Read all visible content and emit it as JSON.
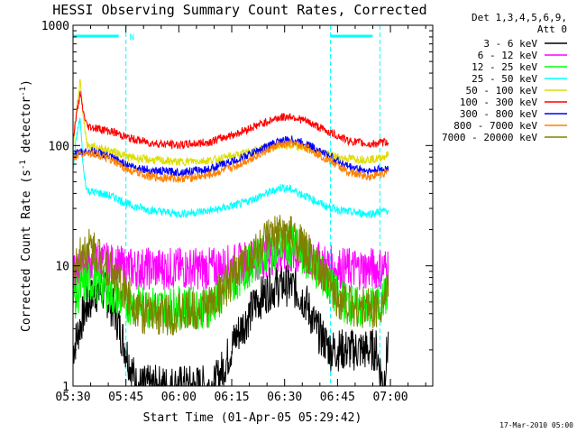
{
  "chart_data": {
    "type": "line",
    "title": "HESSI Observing Summary Count Rates, Corrected",
    "xlabel": "Start Time (01-Apr-05 05:29:42)",
    "ylabel": "Corrected Count Rate (s",
    "ylabel_sup1": "-1",
    "ylabel_mid": " detector",
    "ylabel_sup2": "-1",
    "ylabel_end": ")",
    "yscale": "log",
    "xlim_min": [
      0,
      102
    ],
    "ylim": [
      1,
      1000
    ],
    "x_ticks": [
      {
        "minute": 0,
        "label": "05:30"
      },
      {
        "minute": 15,
        "label": "05:45"
      },
      {
        "minute": 30,
        "label": "06:00"
      },
      {
        "minute": 45,
        "label": "06:15"
      },
      {
        "minute": 60,
        "label": "06:30"
      },
      {
        "minute": 75,
        "label": "06:45"
      },
      {
        "minute": 90,
        "label": "07:00"
      }
    ],
    "y_ticks": [
      {
        "value": 1,
        "label": "1"
      },
      {
        "value": 10,
        "label": "10"
      },
      {
        "value": 100,
        "label": "100"
      },
      {
        "value": 1000,
        "label": "1000"
      }
    ],
    "legend_header": [
      "Det 1,3,4,5,6,9,",
      "Att 0"
    ],
    "legend_placement": "right",
    "timestamp": "17-Mar-2010 05:00",
    "night_label": "N",
    "night_intervals": [
      [
        0,
        15
      ],
      [
        73,
        87
      ]
    ],
    "saa_lines": [
      15,
      73,
      87
    ],
    "series": [
      {
        "name": "3 - 6 keV",
        "color": "#000000",
        "points": [
          [
            0,
            2
          ],
          [
            3,
            4
          ],
          [
            6,
            6
          ],
          [
            9,
            6
          ],
          [
            12,
            4
          ],
          [
            15,
            2
          ],
          [
            18,
            1
          ],
          [
            25,
            1
          ],
          [
            35,
            1
          ],
          [
            40,
            1
          ],
          [
            43,
            1.5
          ],
          [
            46,
            2.5
          ],
          [
            49,
            3.5
          ],
          [
            52,
            5
          ],
          [
            56,
            6.5
          ],
          [
            60,
            7
          ],
          [
            63,
            6.5
          ],
          [
            66,
            5
          ],
          [
            69,
            3
          ],
          [
            73,
            2
          ],
          [
            80,
            2
          ],
          [
            86,
            2
          ],
          [
            88,
            1
          ],
          [
            89.5,
            2.5
          ]
        ]
      },
      {
        "name": "6 - 12 keV",
        "color": "#ff00ff",
        "points": [
          [
            0,
            8
          ],
          [
            3,
            10
          ],
          [
            6,
            11
          ],
          [
            9,
            10.5
          ],
          [
            12,
            10
          ],
          [
            15,
            9.5
          ],
          [
            20,
            9.5
          ],
          [
            30,
            9.5
          ],
          [
            40,
            9.5
          ],
          [
            48,
            10.5
          ],
          [
            55,
            12
          ],
          [
            60,
            12.5
          ],
          [
            65,
            12
          ],
          [
            70,
            10.5
          ],
          [
            75,
            9.5
          ],
          [
            82,
            9.5
          ],
          [
            88,
            9.5
          ],
          [
            89.5,
            10
          ]
        ]
      },
      {
        "name": "12 - 25 keV",
        "color": "#00ff00",
        "points": [
          [
            0,
            5
          ],
          [
            3,
            7
          ],
          [
            6,
            7.5
          ],
          [
            9,
            6.5
          ],
          [
            12,
            5.5
          ],
          [
            15,
            5
          ],
          [
            20,
            4.5
          ],
          [
            30,
            4.5
          ],
          [
            38,
            4.5
          ],
          [
            42,
            5.5
          ],
          [
            46,
            7.5
          ],
          [
            50,
            10
          ],
          [
            55,
            13
          ],
          [
            59,
            15
          ],
          [
            63,
            14
          ],
          [
            67,
            11
          ],
          [
            71,
            8
          ],
          [
            75,
            5.5
          ],
          [
            80,
            4.5
          ],
          [
            86,
            4.5
          ],
          [
            89.5,
            6
          ]
        ]
      },
      {
        "name": "25 - 50 keV",
        "color": "#00ffff",
        "points": [
          [
            0,
            60
          ],
          [
            1,
            120
          ],
          [
            2,
            170
          ],
          [
            3,
            60
          ],
          [
            4,
            42
          ],
          [
            8,
            40
          ],
          [
            12,
            37
          ],
          [
            16,
            32
          ],
          [
            22,
            29
          ],
          [
            30,
            27
          ],
          [
            40,
            29
          ],
          [
            48,
            33
          ],
          [
            55,
            40
          ],
          [
            59,
            45
          ],
          [
            62,
            43
          ],
          [
            66,
            38
          ],
          [
            72,
            31
          ],
          [
            78,
            28
          ],
          [
            84,
            27
          ],
          [
            89.5,
            29
          ]
        ]
      },
      {
        "name": "50 - 100 keV",
        "color": "#dddd00",
        "points": [
          [
            0,
            85
          ],
          [
            1,
            200
          ],
          [
            2,
            350
          ],
          [
            3,
            170
          ],
          [
            4,
            100
          ],
          [
            8,
            95
          ],
          [
            12,
            88
          ],
          [
            16,
            80
          ],
          [
            22,
            76
          ],
          [
            30,
            73
          ],
          [
            40,
            76
          ],
          [
            48,
            85
          ],
          [
            55,
            97
          ],
          [
            60,
            100
          ],
          [
            65,
            96
          ],
          [
            70,
            88
          ],
          [
            76,
            79
          ],
          [
            82,
            77
          ],
          [
            86,
            77
          ],
          [
            89.5,
            84
          ]
        ]
      },
      {
        "name": "100 - 300 keV",
        "color": "#ff0000",
        "points": [
          [
            0,
            115
          ],
          [
            1,
            180
          ],
          [
            2,
            270
          ],
          [
            3,
            185
          ],
          [
            4,
            145
          ],
          [
            8,
            137
          ],
          [
            12,
            128
          ],
          [
            16,
            115
          ],
          [
            22,
            105
          ],
          [
            30,
            101
          ],
          [
            38,
            106
          ],
          [
            46,
            125
          ],
          [
            53,
            150
          ],
          [
            58,
            170
          ],
          [
            62,
            175
          ],
          [
            66,
            160
          ],
          [
            72,
            132
          ],
          [
            78,
            110
          ],
          [
            84,
            102
          ],
          [
            89.5,
            108
          ]
        ]
      },
      {
        "name": "300 - 800 keV",
        "color": "#0000ff",
        "points": [
          [
            0,
            83
          ],
          [
            2,
            88
          ],
          [
            5,
            90
          ],
          [
            8,
            86
          ],
          [
            12,
            77
          ],
          [
            16,
            68
          ],
          [
            22,
            62
          ],
          [
            30,
            60
          ],
          [
            38,
            63
          ],
          [
            46,
            75
          ],
          [
            53,
            92
          ],
          [
            58,
            108
          ],
          [
            62,
            112
          ],
          [
            66,
            104
          ],
          [
            72,
            84
          ],
          [
            78,
            67
          ],
          [
            84,
            61
          ],
          [
            89.5,
            65
          ]
        ]
      },
      {
        "name": "800 - 7000 keV",
        "color": "#ff8000",
        "points": [
          [
            0,
            78
          ],
          [
            2,
            85
          ],
          [
            5,
            87
          ],
          [
            8,
            82
          ],
          [
            12,
            72
          ],
          [
            16,
            62
          ],
          [
            22,
            55
          ],
          [
            30,
            53
          ],
          [
            38,
            56
          ],
          [
            46,
            67
          ],
          [
            53,
            85
          ],
          [
            58,
            100
          ],
          [
            62,
            104
          ],
          [
            66,
            97
          ],
          [
            72,
            77
          ],
          [
            78,
            60
          ],
          [
            84,
            55
          ],
          [
            89.5,
            60
          ]
        ]
      },
      {
        "name": "7000 - 20000 keV",
        "color": "#808000",
        "points": [
          [
            0,
            9
          ],
          [
            3,
            13
          ],
          [
            5,
            14
          ],
          [
            8,
            12
          ],
          [
            11,
            9
          ],
          [
            14,
            6.5
          ],
          [
            17,
            5
          ],
          [
            20,
            4
          ],
          [
            30,
            4
          ],
          [
            38,
            4.5
          ],
          [
            42,
            6
          ],
          [
            46,
            8.5
          ],
          [
            50,
            12
          ],
          [
            55,
            16
          ],
          [
            59,
            18.5
          ],
          [
            63,
            17
          ],
          [
            67,
            12
          ],
          [
            71,
            8
          ],
          [
            75,
            5.5
          ],
          [
            80,
            4.5
          ],
          [
            86,
            4.5
          ],
          [
            89.5,
            6
          ]
        ]
      }
    ]
  }
}
